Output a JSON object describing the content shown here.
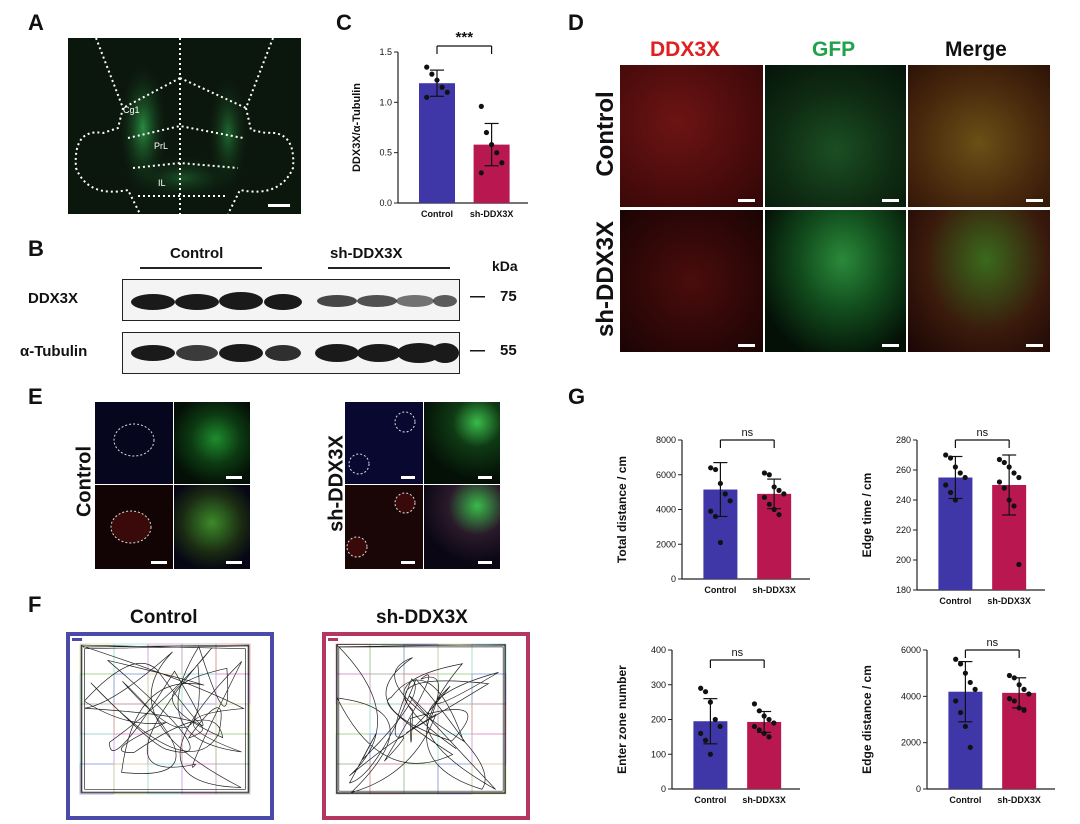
{
  "panel_labels": {
    "A": "A",
    "B": "B",
    "C": "C",
    "D": "D",
    "E": "E",
    "F": "F",
    "G": "G"
  },
  "panelA": {
    "regions": [
      "Cg1",
      "PrL",
      "IL"
    ]
  },
  "panelB": {
    "group1": "Control",
    "group2": "sh-DDX3X",
    "unit": "kDa",
    "rows": [
      {
        "name": "DDX3X",
        "kda": "75"
      },
      {
        "name": "α-Tubulin",
        "kda": "55"
      }
    ],
    "dash": "—"
  },
  "panelD": {
    "columns": [
      {
        "label": "DDX3X",
        "color": "#e02020"
      },
      {
        "label": "GFP",
        "color": "#1fa24a"
      },
      {
        "label": "Merge",
        "color": "#111111"
      }
    ],
    "rows": [
      "Control",
      "sh-DDX3X"
    ]
  },
  "panelE": {
    "groups": [
      "Control",
      "sh-DDX3X"
    ]
  },
  "panelF": {
    "groups": [
      "Control",
      "sh-DDX3X"
    ],
    "colors": [
      "#4a4aa8",
      "#b5365e"
    ]
  },
  "colors": {
    "control": "#3f37a8",
    "sh": "#b8184f"
  },
  "chart_data": [
    {
      "id": "C",
      "type": "bar",
      "categories": [
        "Control",
        "sh-DDX3X"
      ],
      "values": [
        1.19,
        0.58
      ],
      "errors": [
        0.13,
        0.21
      ],
      "points": [
        [
          1.35,
          1.28,
          1.22,
          1.15,
          1.1,
          1.05
        ],
        [
          0.96,
          0.7,
          0.58,
          0.5,
          0.4,
          0.3
        ]
      ],
      "ylabel": "DDX3X/α-Tubulin",
      "ylim": [
        0,
        1.5
      ],
      "yticks": [
        0.0,
        0.5,
        1.0,
        1.5
      ],
      "ytick_labels": [
        "0.0",
        "0.5",
        "1.0",
        "1.5"
      ],
      "significance": "***"
    },
    {
      "id": "G1",
      "type": "bar",
      "categories": [
        "Control",
        "sh-DDX3X"
      ],
      "values": [
        5150,
        4900
      ],
      "errors": [
        1550,
        850
      ],
      "points": [
        [
          6400,
          6300,
          5500,
          4900,
          4500,
          3900,
          3600,
          2100
        ],
        [
          6100,
          6000,
          5300,
          5100,
          4900,
          4700,
          4300,
          4000,
          3700
        ]
      ],
      "ylabel": "Total distance / cm",
      "ylim": [
        0,
        8000
      ],
      "yticks": [
        0,
        2000,
        4000,
        6000,
        8000
      ],
      "ytick_labels": [
        "0",
        "2000",
        "4000",
        "6000",
        "8000"
      ],
      "significance": "ns"
    },
    {
      "id": "G2",
      "type": "bar",
      "categories": [
        "Control",
        "sh-DDX3X"
      ],
      "values": [
        255,
        250
      ],
      "errors": [
        14,
        20
      ],
      "points": [
        [
          270,
          268,
          262,
          258,
          255,
          250,
          245,
          240
        ],
        [
          267,
          265,
          262,
          258,
          255,
          252,
          248,
          240,
          236,
          197
        ]
      ],
      "ylabel": "Edge time / cm",
      "ylim": [
        180,
        280
      ],
      "yticks": [
        180,
        200,
        220,
        240,
        260,
        280
      ],
      "ytick_labels": [
        "180",
        "200",
        "220",
        "240",
        "260",
        "280"
      ],
      "significance": "ns"
    },
    {
      "id": "G3",
      "type": "bar",
      "categories": [
        "Control",
        "sh-DDX3X"
      ],
      "values": [
        195,
        193
      ],
      "errors": [
        65,
        30
      ],
      "points": [
        [
          290,
          280,
          250,
          200,
          180,
          160,
          140,
          100
        ],
        [
          245,
          225,
          210,
          200,
          190,
          180,
          170,
          160,
          150
        ]
      ],
      "ylabel": "Enter zone number",
      "ylim": [
        0,
        400
      ],
      "yticks": [
        0,
        100,
        200,
        300,
        400
      ],
      "ytick_labels": [
        "0",
        "100",
        "200",
        "300",
        "400"
      ],
      "significance": "ns"
    },
    {
      "id": "G4",
      "type": "bar",
      "categories": [
        "Control",
        "sh-DDX3X"
      ],
      "values": [
        4200,
        4150
      ],
      "errors": [
        1300,
        650
      ],
      "points": [
        [
          5600,
          5400,
          5000,
          4600,
          4300,
          3800,
          3300,
          2700,
          1800
        ],
        [
          4900,
          4800,
          4500,
          4300,
          4100,
          3900,
          3800,
          3500,
          3400
        ]
      ],
      "ylabel": "Edge distance / cm",
      "ylim": [
        0,
        6000
      ],
      "yticks": [
        0,
        2000,
        4000,
        6000
      ],
      "ytick_labels": [
        "0",
        "2000",
        "4000",
        "6000"
      ],
      "significance": "ns"
    }
  ]
}
